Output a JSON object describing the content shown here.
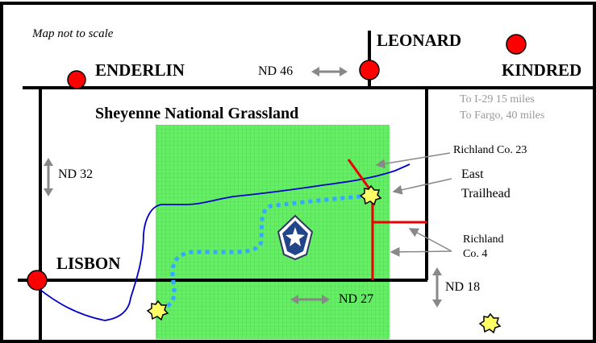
{
  "map": {
    "note": "Map not to scale",
    "towns": {
      "leonard": "LEONARD",
      "enderlin": "ENDERLIN",
      "kindred": "KINDRED",
      "lisbon": "LISBON"
    },
    "area_name": "Sheyenne National Grassland",
    "roads": {
      "nd46": "ND 46",
      "nd32": "ND 32",
      "nd27": "ND 27",
      "nd18": "ND 18",
      "richland23": "Richland Co. 23",
      "richland4_line1": "Richland",
      "richland4_line2": "Co. 4"
    },
    "directions": {
      "i29": "To I-29 15 miles",
      "fargo": "To Fargo, 40 miles"
    },
    "trailhead": {
      "line1": "East",
      "line2": "Trailhead"
    },
    "colors": {
      "grassland": "#66ee66",
      "town_marker": "#ff0000",
      "river": "#0000cc",
      "trail": "#33aaff",
      "county_road": "#ee0000",
      "trailhead_marker": "#ffff66"
    }
  }
}
